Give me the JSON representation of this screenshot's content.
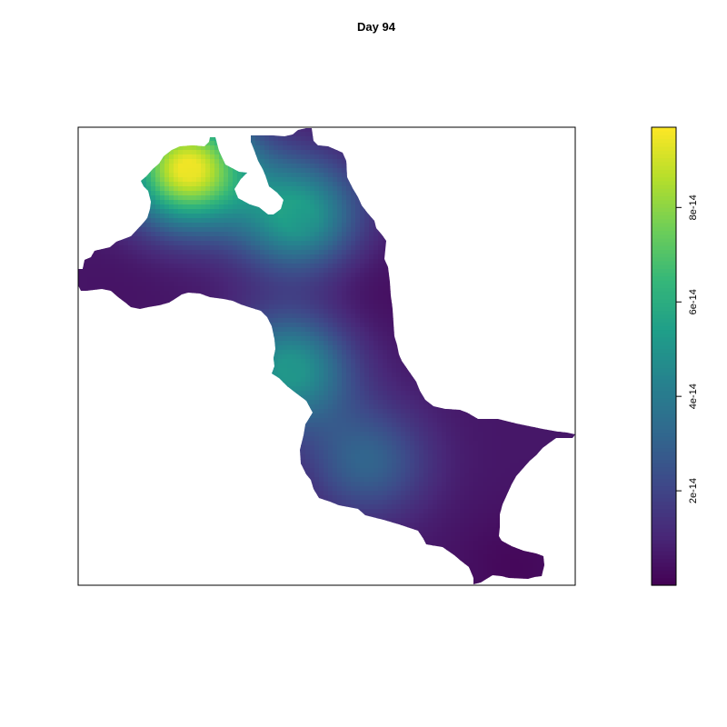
{
  "chart_data": {
    "type": "heatmap",
    "title": "Day 94",
    "xlabel": "",
    "ylabel": "",
    "colorscale": "viridis",
    "legend": {
      "placement": "right",
      "range": [
        0,
        9.7e-14
      ],
      "ticks": [
        {
          "value": 2e-14,
          "label": "2e-14"
        },
        {
          "value": 4e-14,
          "label": "4e-14"
        },
        {
          "value": 6e-14,
          "label": "6e-14"
        },
        {
          "value": 8e-14,
          "label": "8e-14"
        }
      ]
    },
    "peaks": [
      {
        "x": 0.22,
        "y": 0.91,
        "value": 9.6e-14
      },
      {
        "x": 0.44,
        "y": 0.81,
        "value": 5.5e-14
      },
      {
        "x": 0.425,
        "y": 0.47,
        "value": 5.2e-14
      },
      {
        "x": 0.58,
        "y": 0.27,
        "value": 3.1e-14
      },
      {
        "x": 0.09,
        "y": 0.67,
        "value": 5e-15
      },
      {
        "x": 0.58,
        "y": 0.65,
        "value": 3e-15
      },
      {
        "x": 0.88,
        "y": 0.04,
        "value": 2e-15
      }
    ],
    "background_value": 6e-15,
    "grid": false
  }
}
